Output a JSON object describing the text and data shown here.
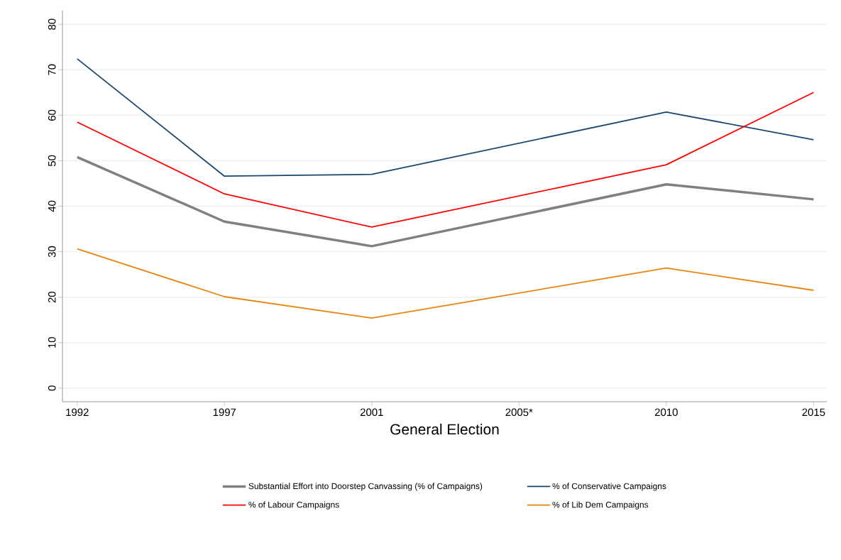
{
  "chart_data": {
    "type": "line",
    "xlabel": "General Election",
    "categories": [
      "1992",
      "1997",
      "2001",
      "2005*",
      "2010",
      "2015"
    ],
    "ylim": [
      -3,
      83
    ],
    "yticks": [
      0,
      10,
      20,
      30,
      40,
      50,
      60,
      70,
      80
    ],
    "grid": "y",
    "legend": "bottom",
    "marker": "none",
    "series": [
      {
        "name": "Substantial Effort into Doorstep Canvassing (% of Campaigns)",
        "color": "#808080",
        "values": [
          50.8,
          36.6,
          31.2,
          null,
          44.8,
          41.5
        ]
      },
      {
        "name": "% of Conservative Campaigns",
        "color": "#1a476f",
        "values": [
          72.4,
          46.6,
          47.0,
          null,
          60.7,
          54.6
        ]
      },
      {
        "name": "% of Labour Campaigns",
        "color": "#ff0000",
        "values": [
          58.5,
          42.7,
          35.4,
          null,
          49.1,
          65.0
        ]
      },
      {
        "name": "% of Lib Dem Campaigns",
        "color": "#e8850f",
        "values": [
          30.6,
          20.1,
          15.4,
          null,
          26.4,
          21.5
        ]
      }
    ]
  }
}
